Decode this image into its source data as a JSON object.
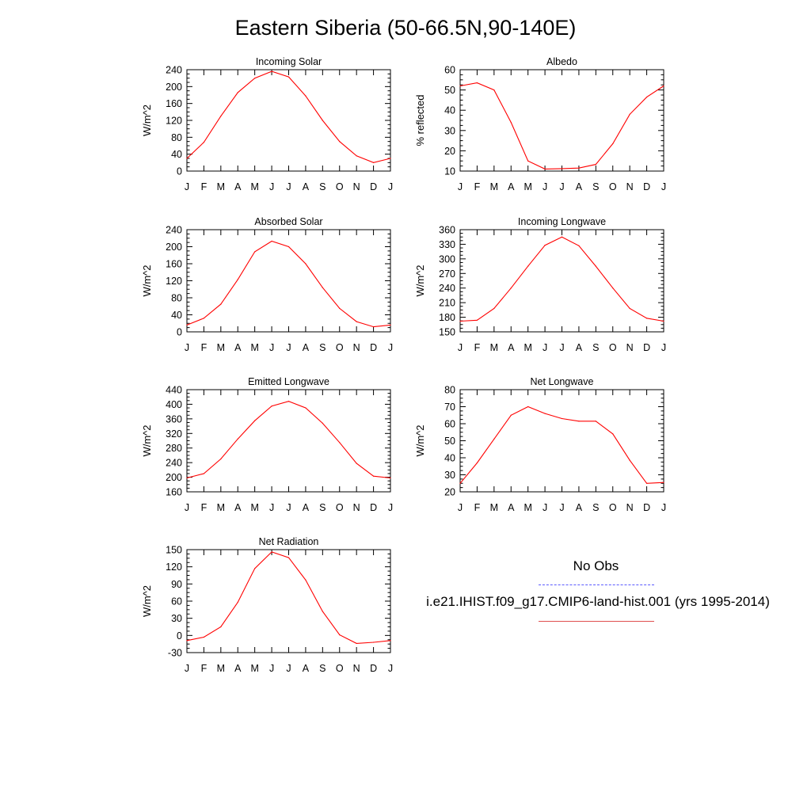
{
  "title": "Eastern Siberia (50-66.5N,90-140E)",
  "colors": {
    "model_line": "#ff0000",
    "obs_line": "#5b5bff",
    "axes": "#000000"
  },
  "legend": {
    "obs_label": "No Obs",
    "case_label": "i.e21.IHIST.f09_g17.CMIP6-land-hist.001 (yrs 1995-2014)"
  },
  "chart_data": [
    {
      "type": "line",
      "title": "Incoming Solar",
      "ylabel": "W/m^2",
      "x": [
        "J",
        "F",
        "M",
        "A",
        "M",
        "J",
        "J",
        "A",
        "S",
        "O",
        "N",
        "D",
        "J"
      ],
      "ylim": [
        0,
        240
      ],
      "yticks": [
        0,
        40,
        80,
        120,
        160,
        200,
        240
      ],
      "series": [
        {
          "values": [
            30,
            68,
            130,
            186,
            220,
            236,
            223,
            178,
            120,
            70,
            36,
            20,
            30
          ]
        }
      ]
    },
    {
      "type": "line",
      "title": "Albedo",
      "ylabel": "% reflected",
      "x": [
        "J",
        "F",
        "M",
        "A",
        "M",
        "J",
        "J",
        "A",
        "S",
        "O",
        "N",
        "D",
        "J"
      ],
      "ylim": [
        10,
        60
      ],
      "yticks": [
        10,
        20,
        30,
        40,
        50,
        60
      ],
      "series": [
        {
          "values": [
            52,
            53.5,
            50,
            34,
            15,
            11,
            11.2,
            11.5,
            13.3,
            23.5,
            38,
            46.5,
            52
          ]
        }
      ]
    },
    {
      "type": "line",
      "title": "Absorbed Solar",
      "ylabel": "W/m^2",
      "x": [
        "J",
        "F",
        "M",
        "A",
        "M",
        "J",
        "J",
        "A",
        "S",
        "O",
        "N",
        "D",
        "J"
      ],
      "ylim": [
        0,
        240
      ],
      "yticks": [
        0,
        40,
        80,
        120,
        160,
        200,
        240
      ],
      "series": [
        {
          "values": [
            16,
            32,
            65,
            123,
            188,
            213,
            200,
            160,
            104,
            55,
            24,
            12,
            16
          ]
        }
      ]
    },
    {
      "type": "line",
      "title": "Incoming Longwave",
      "ylabel": "W/m^2",
      "x": [
        "J",
        "F",
        "M",
        "A",
        "M",
        "J",
        "J",
        "A",
        "S",
        "O",
        "N",
        "D",
        "J"
      ],
      "ylim": [
        150,
        360
      ],
      "yticks": [
        150,
        180,
        210,
        240,
        270,
        300,
        330,
        360
      ],
      "series": [
        {
          "values": [
            172,
            174,
            198,
            240,
            285,
            328,
            345,
            327,
            285,
            240,
            198,
            178,
            172
          ]
        }
      ]
    },
    {
      "type": "line",
      "title": "Emitted Longwave",
      "ylabel": "W/m^2",
      "x": [
        "J",
        "F",
        "M",
        "A",
        "M",
        "J",
        "J",
        "A",
        "S",
        "O",
        "N",
        "D",
        "J"
      ],
      "ylim": [
        160,
        440
      ],
      "yticks": [
        160,
        200,
        240,
        280,
        320,
        360,
        400,
        440
      ],
      "series": [
        {
          "values": [
            198,
            210,
            250,
            305,
            355,
            395,
            408,
            390,
            348,
            295,
            238,
            203,
            198
          ]
        }
      ]
    },
    {
      "type": "line",
      "title": "Net Longwave",
      "ylabel": "W/m^2",
      "x": [
        "J",
        "F",
        "M",
        "A",
        "M",
        "J",
        "J",
        "A",
        "S",
        "O",
        "N",
        "D",
        "J"
      ],
      "ylim": [
        20,
        80
      ],
      "yticks": [
        20,
        30,
        40,
        50,
        60,
        70,
        80
      ],
      "series": [
        {
          "values": [
            25,
            37,
            51,
            65,
            70,
            66,
            63,
            61.5,
            61.5,
            54,
            38.5,
            25,
            25.5
          ]
        }
      ]
    },
    {
      "type": "line",
      "title": "Net Radiation",
      "ylabel": "W/m^2",
      "x": [
        "J",
        "F",
        "M",
        "A",
        "M",
        "J",
        "J",
        "A",
        "S",
        "O",
        "N",
        "D",
        "J"
      ],
      "ylim": [
        -30,
        150
      ],
      "yticks": [
        -30,
        0,
        30,
        60,
        90,
        120,
        150
      ],
      "series": [
        {
          "values": [
            -9,
            -3,
            15,
            58,
            117,
            146,
            136,
            97,
            42,
            1,
            -14,
            -12,
            -9
          ]
        }
      ]
    }
  ]
}
